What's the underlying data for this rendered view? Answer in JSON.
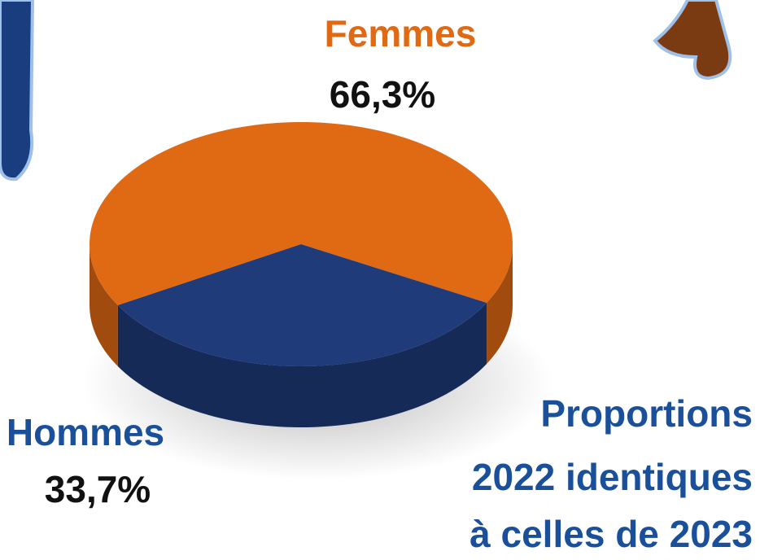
{
  "chart_data": {
    "type": "pie",
    "categories": [
      "Femmes",
      "Hommes"
    ],
    "values": [
      66.3,
      33.7
    ],
    "value_labels": [
      "66,3%",
      "33,7%"
    ],
    "colors": [
      "#e06a14",
      "#1f3b7a"
    ],
    "annotation": [
      "Proportions",
      "2022 identiques",
      "à celles de 2023"
    ]
  }
}
